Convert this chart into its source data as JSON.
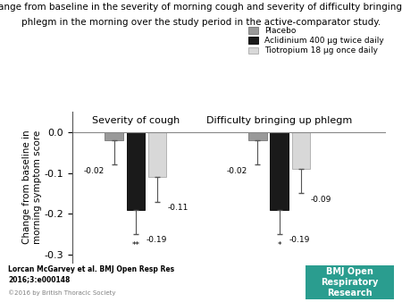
{
  "title_line1": "Change from baseline in the severity of morning cough and severity of difficulty bringing up",
  "title_line2": "phlegm in the morning over the study period in the active-comparator study.",
  "ylabel": "Change from baseline in\nmorning symptom score",
  "group1_label": "Severity of cough",
  "group2_label": "Difficulty bringing up phlegm",
  "categories": [
    "Placebo",
    "Aclidinium 400 μg twice daily",
    "Tiotropium 18 μg once daily"
  ],
  "bar_colors": [
    "#999999",
    "#1a1a1a",
    "#d8d8d8"
  ],
  "bar_edgecolors": [
    "#777777",
    "#000000",
    "#aaaaaa"
  ],
  "group1_values": [
    -0.02,
    -0.19,
    -0.11
  ],
  "group2_values": [
    -0.02,
    -0.19,
    -0.09
  ],
  "group1_errors_lo": [
    0.06,
    0.06,
    0.06
  ],
  "group2_errors_lo": [
    0.06,
    0.06,
    0.06
  ],
  "group1_ann": [
    "-0.02",
    "-0.19",
    "-0.11"
  ],
  "group2_ann": [
    "-0.02",
    "-0.19",
    "-0.09"
  ],
  "group1_stars": [
    "",
    "**",
    ""
  ],
  "group2_stars": [
    "",
    "*",
    ""
  ],
  "ylim": [
    -0.32,
    0.05
  ],
  "yticks": [
    0.0,
    -0.1,
    -0.2,
    -0.3
  ],
  "citation": "Lorcan McGarvey et al. BMJ Open Resp Res\n2016;3:e000148",
  "copyright": "©2016 by British Thoracic Society",
  "bmj_label": "BMJ Open\nRespiratory\nResearch",
  "bmj_color": "#2a9d8f"
}
